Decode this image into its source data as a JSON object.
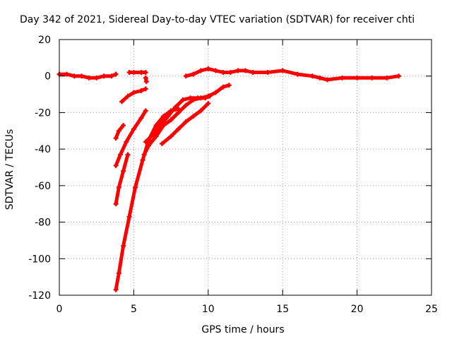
{
  "chart_data": {
    "type": "line",
    "title": "Day 342 of 2021, Sidereal Day-to-day VTEC variation (SDTVAR) for receiver chti",
    "xlabel": "GPS time / hours",
    "ylabel": "SDTVAR / TECUs",
    "xlim": [
      0,
      25
    ],
    "ylim": [
      -120,
      20
    ],
    "xticks": [
      0,
      5,
      10,
      15,
      20,
      25
    ],
    "yticks": [
      -120,
      -100,
      -80,
      -60,
      -40,
      -20,
      0,
      20
    ],
    "grid": true,
    "series_color": "#ff0000",
    "series": [
      {
        "x": [
          0.0,
          0.5,
          1.0,
          1.5,
          2.0,
          2.5,
          3.0,
          3.5,
          3.8
        ],
        "y": [
          1,
          1,
          0,
          0,
          -1,
          -1,
          0,
          0,
          1
        ]
      },
      {
        "x": [
          4.7,
          5.0,
          5.5,
          5.8
        ],
        "y": [
          2,
          2,
          2,
          2
        ]
      },
      {
        "x": [
          5.8,
          5.85
        ],
        "y": [
          -1,
          -3
        ]
      },
      {
        "x": [
          8.5,
          9.0,
          9.5,
          10.0,
          10.5,
          11.0,
          11.5,
          12.0,
          12.5,
          13.0,
          14.0,
          15.0,
          16.0,
          17.0,
          17.5,
          18.0,
          19.0,
          20.0,
          21.0,
          22.0,
          22.8
        ],
        "y": [
          0,
          1,
          3,
          4,
          3,
          2,
          2,
          3,
          3,
          2,
          2,
          3,
          1,
          0,
          -1,
          -2,
          -1,
          -1,
          -1,
          -1,
          0
        ]
      },
      {
        "x": [
          4.2,
          4.6,
          5.0,
          5.5,
          5.8
        ],
        "y": [
          -14,
          -11,
          -9,
          -8,
          -7
        ]
      },
      {
        "x": [
          3.8,
          4.0,
          4.3
        ],
        "y": [
          -34,
          -30,
          -27
        ]
      },
      {
        "x": [
          3.8,
          4.1,
          4.5,
          5.0,
          5.5,
          5.8
        ],
        "y": [
          -49,
          -43,
          -36,
          -29,
          -23,
          -19
        ]
      },
      {
        "x": [
          3.8,
          4.0,
          4.3,
          4.6
        ],
        "y": [
          -70,
          -61,
          -52,
          -43
        ]
      },
      {
        "x": [
          3.8,
          4.0,
          4.3,
          4.7,
          5.1,
          5.6,
          6.0,
          6.5,
          7.0,
          7.5,
          8.0
        ],
        "y": [
          -117,
          -108,
          -93,
          -77,
          -61,
          -46,
          -35,
          -27,
          -22,
          -19,
          -18
        ]
      },
      {
        "x": [
          5.7,
          6.0,
          6.5,
          7.0,
          7.5,
          8.0,
          8.5,
          9.0,
          9.5,
          10.0,
          10.5,
          11.0,
          11.4
        ],
        "y": [
          -43,
          -38,
          -33,
          -27,
          -24,
          -20,
          -16,
          -13,
          -12,
          -11,
          -9,
          -6,
          -5
        ]
      },
      {
        "x": [
          5.8,
          6.3,
          6.8,
          7.3,
          7.8,
          8.3,
          8.8,
          9.3,
          9.8,
          10.1
        ],
        "y": [
          -36,
          -32,
          -27,
          -22,
          -17,
          -13,
          -12,
          -12,
          -12,
          -11
        ]
      },
      {
        "x": [
          6.9,
          7.5,
          8.0,
          8.5,
          9.0,
          9.5,
          10.0
        ],
        "y": [
          -37,
          -33,
          -29,
          -25,
          -22,
          -19,
          -15
        ]
      }
    ]
  }
}
